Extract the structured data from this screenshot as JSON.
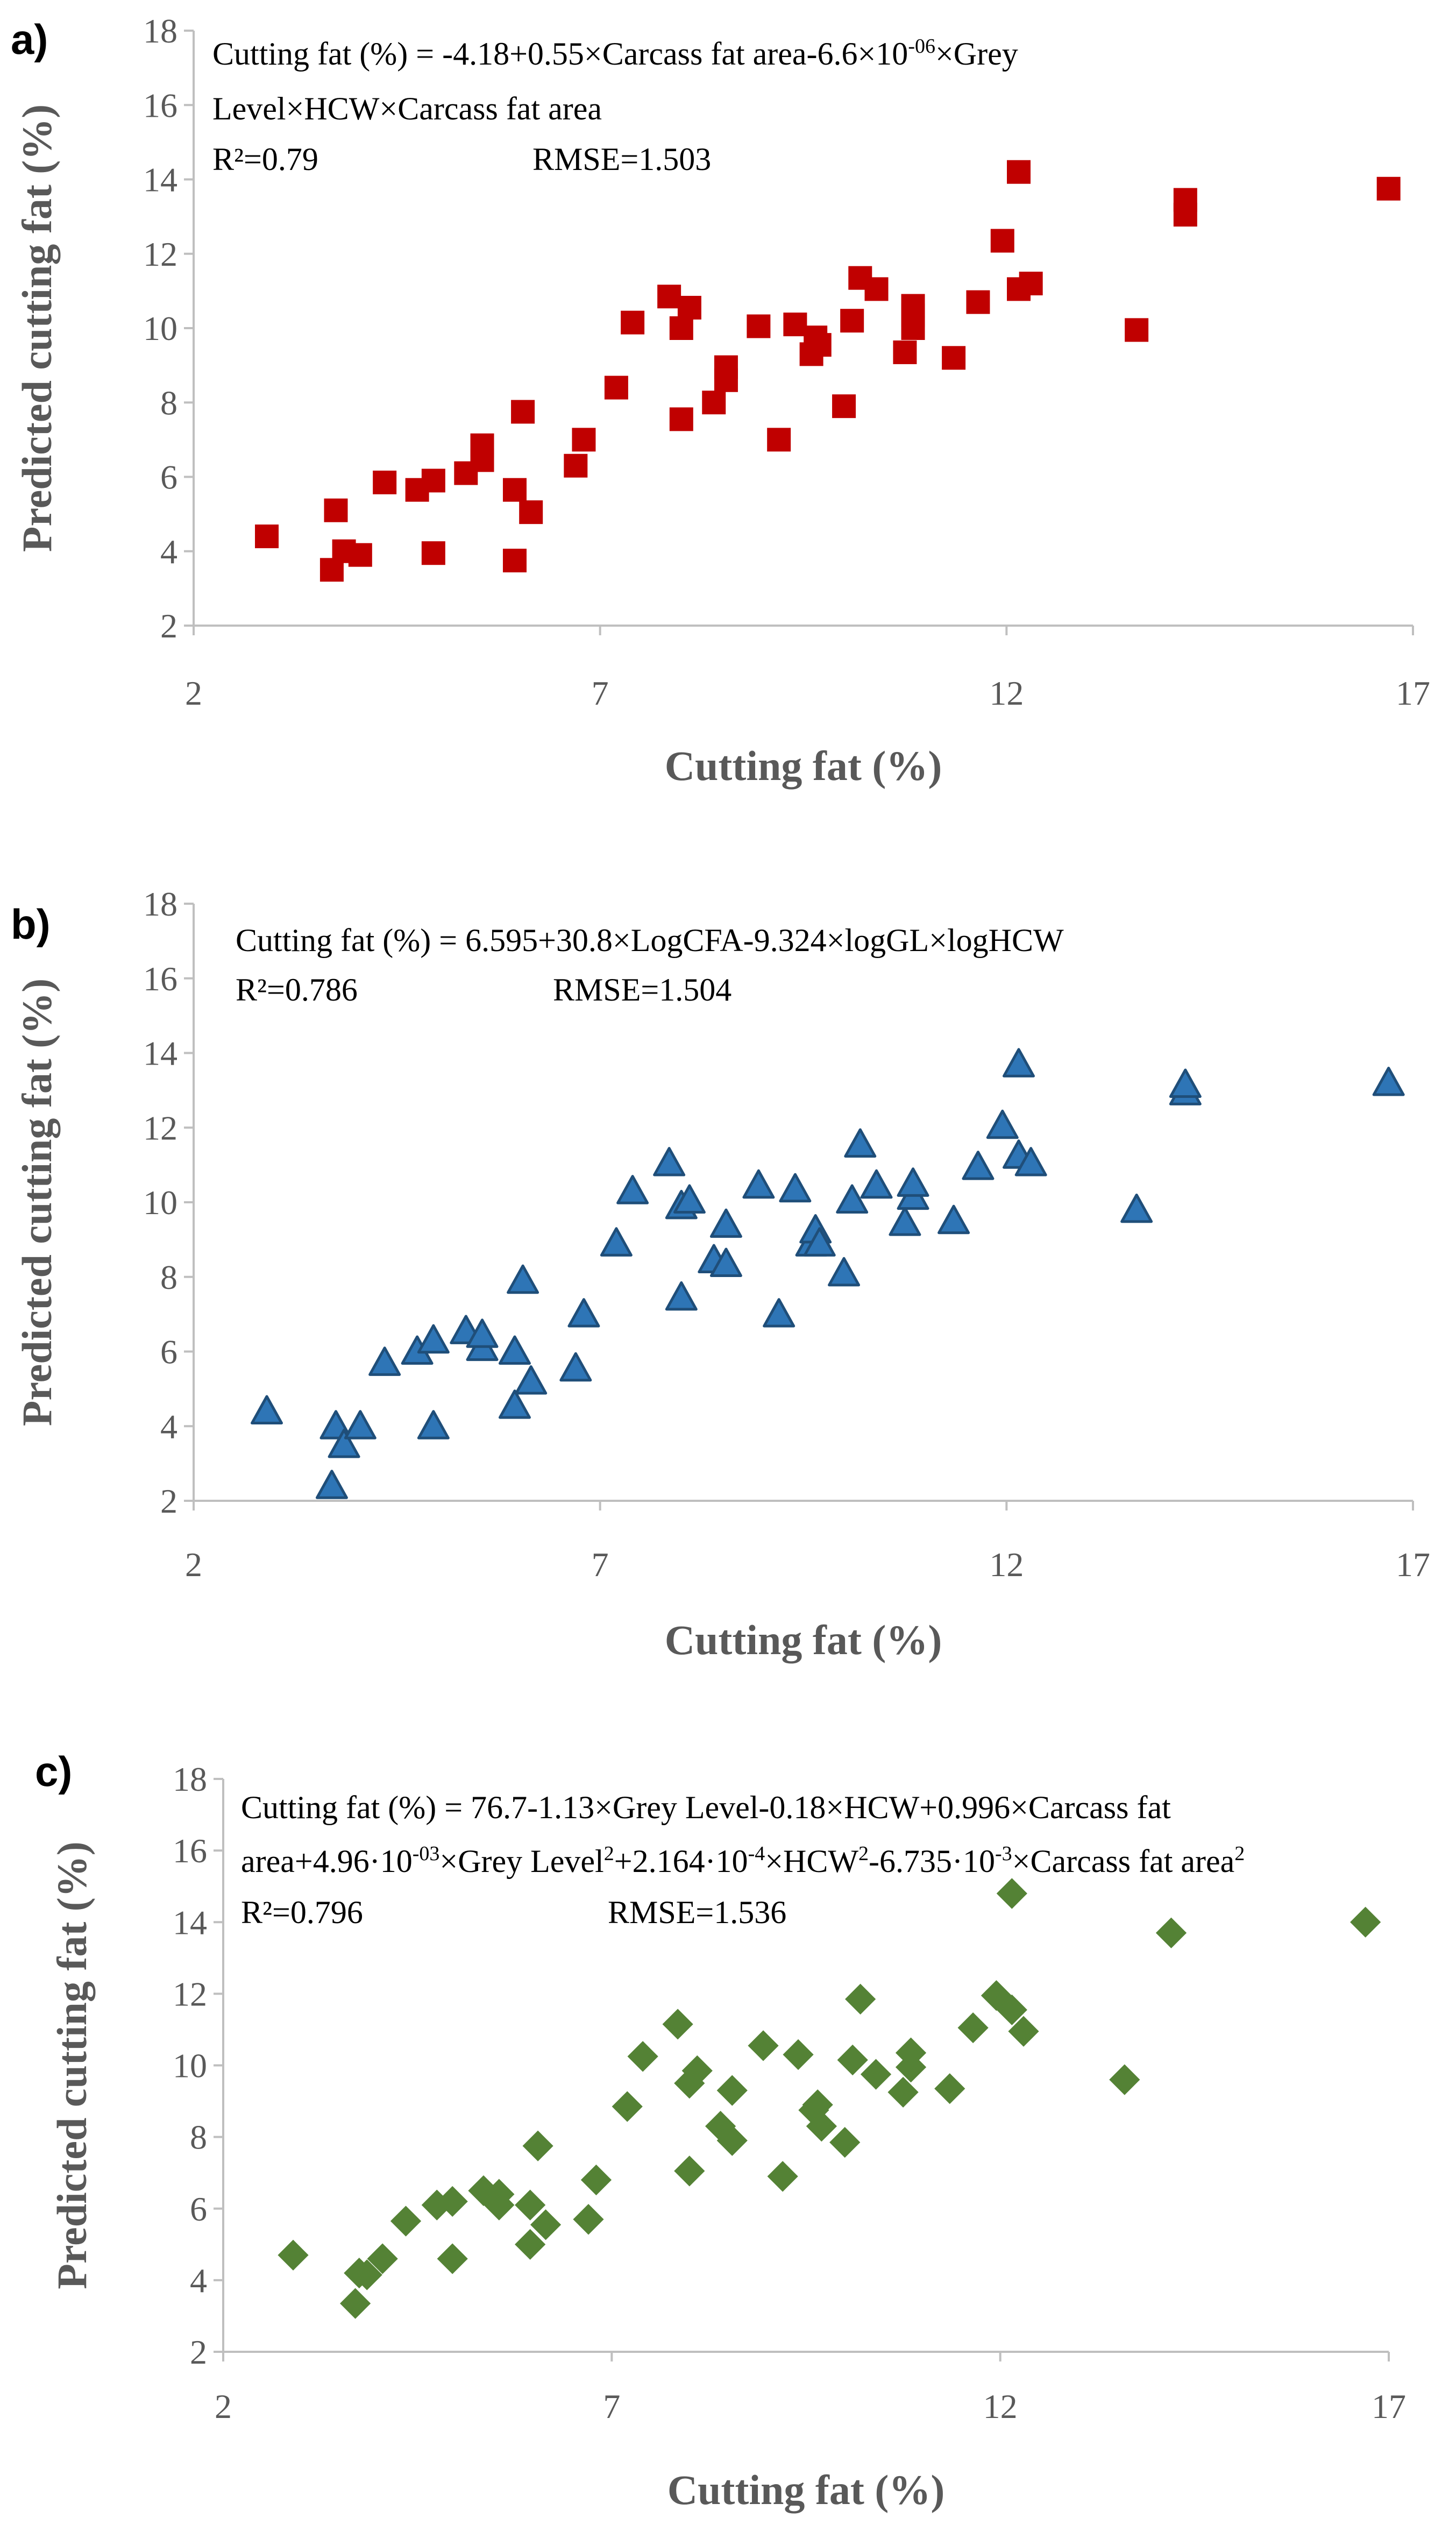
{
  "chart_data": [
    {
      "type": "scatter",
      "panel_label": "a)",
      "marker": "square",
      "color": "#C00000",
      "xlabel": "Cutting fat (%)",
      "ylabel": "Predicted cutting fat (%)",
      "xlim": [
        2,
        17
      ],
      "ylim": [
        2,
        18
      ],
      "xticks": [
        2,
        7,
        12,
        17
      ],
      "yticks": [
        2,
        4,
        6,
        8,
        10,
        12,
        14,
        16,
        18
      ],
      "equation_lines": [
        [
          {
            "t": "Cutting fat (%) = -4.18+0.55×Carcass fat area-6.6×10"
          },
          {
            "t": "-06",
            "sup": true
          },
          {
            "t": "×Grey"
          }
        ],
        [
          {
            "t": "Level×HCW×Carcass fat area"
          }
        ]
      ],
      "r2": "R²=0.79",
      "rmse": "RMSE=1.503",
      "x": [
        2.9,
        3.7,
        3.75,
        3.85,
        4.05,
        4.35,
        4.75,
        4.95,
        4.95,
        5.35,
        5.55,
        5.55,
        5.95,
        5.95,
        6.05,
        6.15,
        6.7,
        6.8,
        7.2,
        7.4,
        7.85,
        8.0,
        8.0,
        8.1,
        8.4,
        8.55,
        8.55,
        8.95,
        9.2,
        9.4,
        9.6,
        9.65,
        9.7,
        10.0,
        10.1,
        10.2,
        10.4,
        10.75,
        10.85,
        10.85,
        10.85,
        11.35,
        11.65,
        11.95,
        12.15,
        12.15,
        12.3,
        13.6,
        14.2,
        14.2,
        16.7
      ],
      "y": [
        4.4,
        3.5,
        5.1,
        4.0,
        3.9,
        5.85,
        5.65,
        3.95,
        5.9,
        6.1,
        6.45,
        6.85,
        3.75,
        5.65,
        7.75,
        5.05,
        6.3,
        7.0,
        8.4,
        10.15,
        10.85,
        10.0,
        7.55,
        10.55,
        8.0,
        8.6,
        8.95,
        10.05,
        7.0,
        10.1,
        9.3,
        9.75,
        9.55,
        7.9,
        10.2,
        11.35,
        11.05,
        9.35,
        10.0,
        10.35,
        10.6,
        9.2,
        10.7,
        12.35,
        14.2,
        11.05,
        11.2,
        9.95,
        13.05,
        13.45,
        13.75
      ]
    },
    {
      "type": "scatter",
      "panel_label": "b)",
      "marker": "triangle",
      "color": "#2E75B6",
      "xlabel": "Cutting fat (%)",
      "ylabel": "Predicted cutting fat (%)",
      "xlim": [
        2,
        17
      ],
      "ylim": [
        2,
        18
      ],
      "xticks": [
        2,
        7,
        12,
        17
      ],
      "yticks": [
        2,
        4,
        6,
        8,
        10,
        12,
        14,
        16,
        18
      ],
      "equation_lines": [
        [
          {
            "t": "Cutting fat (%) = 6.595+30.8×LogCFA-9.324×logGL×logHCW"
          }
        ]
      ],
      "r2": "R²=0.786",
      "rmse": "RMSE=1.504",
      "x": [
        2.9,
        3.7,
        3.75,
        3.85,
        4.05,
        4.35,
        4.75,
        4.95,
        4.95,
        5.35,
        5.55,
        5.55,
        5.95,
        5.95,
        6.05,
        6.15,
        6.7,
        6.8,
        7.2,
        7.4,
        7.85,
        8.0,
        8.0,
        8.1,
        8.4,
        8.55,
        8.55,
        8.95,
        9.2,
        9.4,
        9.6,
        9.65,
        9.7,
        10.0,
        10.1,
        10.2,
        10.4,
        10.75,
        10.85,
        10.85,
        11.35,
        11.65,
        11.95,
        12.15,
        12.15,
        12.3,
        13.6,
        14.2,
        14.2,
        16.7
      ],
      "y": [
        4.4,
        2.4,
        4.0,
        3.5,
        4.0,
        5.7,
        6.0,
        4.0,
        6.3,
        6.55,
        6.1,
        6.45,
        4.55,
        6.0,
        7.9,
        5.2,
        5.55,
        7.0,
        8.9,
        10.3,
        11.05,
        9.9,
        7.45,
        10.05,
        8.45,
        8.35,
        9.4,
        10.45,
        7.0,
        10.35,
        8.9,
        9.25,
        8.9,
        8.1,
        10.05,
        11.55,
        10.45,
        9.45,
        10.15,
        10.5,
        9.5,
        10.95,
        12.05,
        13.7,
        11.25,
        11.05,
        9.8,
        12.95,
        13.15,
        13.2
      ]
    },
    {
      "type": "scatter",
      "panel_label": "c)",
      "marker": "diamond",
      "color": "#548235",
      "xlabel": "Cutting fat (%)",
      "ylabel": "Predicted cutting fat (%)",
      "xlim": [
        2,
        17
      ],
      "ylim": [
        2,
        18
      ],
      "xticks": [
        2,
        7,
        12,
        17
      ],
      "yticks": [
        2,
        4,
        6,
        8,
        10,
        12,
        14,
        16,
        18
      ],
      "equation_lines": [
        [
          {
            "t": "Cutting fat (%) = 76.7-1.13×Grey Level-0.18×HCW+0.996×Carcass fat"
          }
        ],
        [
          {
            "t": "area+4.96·10"
          },
          {
            "t": "-03",
            "sup": true
          },
          {
            "t": "×Grey Level"
          },
          {
            "t": "2",
            "sup": true
          },
          {
            "t": "+2.164·10"
          },
          {
            "t": "-4",
            "sup": true
          },
          {
            "t": "×HCW"
          },
          {
            "t": "2",
            "sup": true
          },
          {
            "t": "-6.735·10"
          },
          {
            "t": "-3",
            "sup": true
          },
          {
            "t": "×Carcass fat area"
          },
          {
            "t": "2",
            "sup": true
          }
        ]
      ],
      "r2": "R²=0.796",
      "rmse": "RMSE=1.536",
      "x": [
        2.9,
        3.7,
        3.75,
        3.85,
        4.05,
        4.35,
        4.75,
        4.95,
        4.95,
        5.35,
        5.55,
        5.55,
        5.95,
        5.95,
        6.05,
        6.15,
        6.7,
        6.8,
        7.2,
        7.4,
        7.85,
        8.0,
        8.0,
        8.1,
        8.4,
        8.55,
        8.55,
        8.95,
        9.2,
        9.4,
        9.6,
        9.65,
        9.7,
        10.0,
        10.1,
        10.2,
        10.4,
        10.75,
        10.85,
        10.85,
        11.35,
        11.65,
        11.95,
        12.15,
        12.15,
        12.3,
        13.6,
        14.2,
        16.7
      ],
      "y": [
        4.7,
        3.35,
        4.2,
        4.15,
        4.6,
        5.65,
        6.1,
        4.6,
        6.2,
        6.5,
        6.4,
        6.1,
        5.0,
        6.1,
        7.75,
        5.55,
        5.7,
        6.8,
        8.85,
        10.25,
        11.15,
        9.5,
        7.05,
        9.85,
        8.3,
        7.9,
        9.3,
        10.55,
        6.9,
        10.3,
        8.75,
        8.9,
        8.3,
        7.85,
        10.15,
        11.85,
        9.75,
        9.25,
        10.35,
        9.95,
        9.35,
        11.05,
        11.95,
        14.8,
        11.55,
        10.95,
        9.6,
        13.7,
        14.0
      ]
    }
  ]
}
